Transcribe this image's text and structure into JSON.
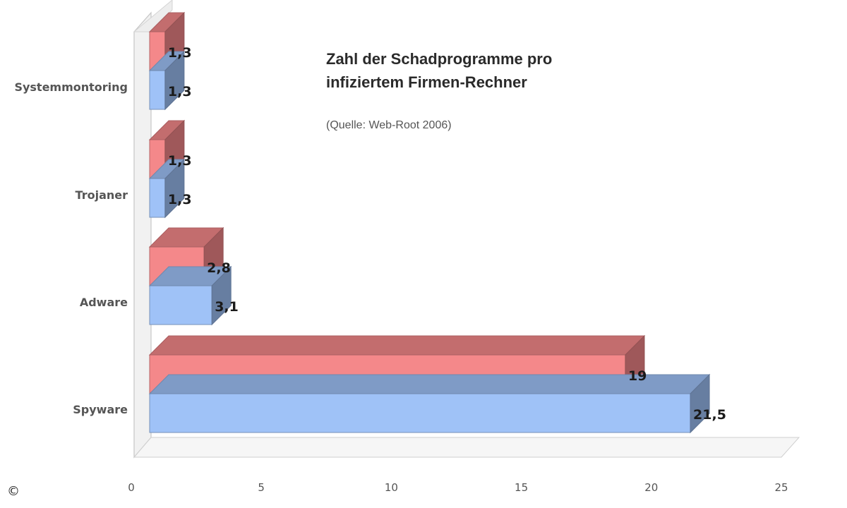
{
  "chart_data": {
    "type": "bar",
    "orientation": "horizontal",
    "style": "3d",
    "title_lines": [
      "Zahl der Schadprogramme pro",
      "infiziertem Firmen-Rechner"
    ],
    "subtitle": "(Quelle: Web-Root 2006)",
    "categories": [
      "Systemmontoring",
      "Trojaner",
      "Adware",
      "Spyware"
    ],
    "series": [
      {
        "color": "#f4888a",
        "values": [
          1.3,
          1.3,
          2.8,
          19
        ]
      },
      {
        "color": "#9fc2f7",
        "values": [
          1.3,
          1.3,
          3.1,
          21.5
        ]
      }
    ],
    "data_labels": [
      [
        "1,3",
        "1,3",
        "2,8",
        "19"
      ],
      [
        "1,3",
        "1,3",
        "3,1",
        "21,5"
      ]
    ],
    "x_ticks": [
      "0",
      "5",
      "10",
      "15",
      "20",
      "25"
    ],
    "xlim": [
      0,
      25
    ],
    "grid": false,
    "legend": "none"
  },
  "copyright_symbol": "©"
}
